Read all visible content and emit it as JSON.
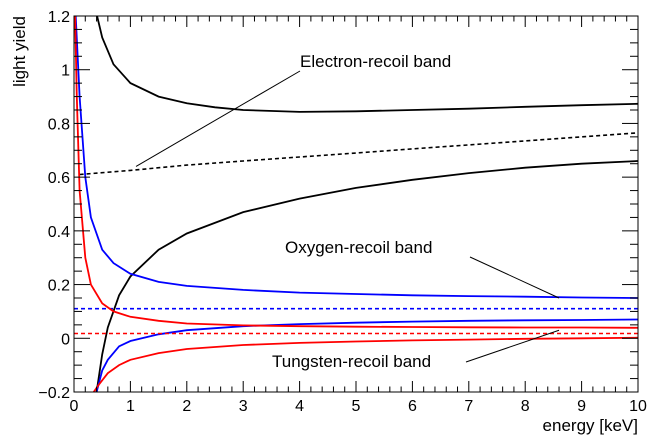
{
  "chart_data": {
    "type": "line",
    "xlabel": "energy [keV]",
    "ylabel": "light yield",
    "xlim": [
      0,
      10
    ],
    "ylim": [
      -0.2,
      1.2
    ],
    "xticks": [
      "0",
      "1",
      "2",
      "3",
      "4",
      "5",
      "6",
      "7",
      "8",
      "9",
      "10"
    ],
    "yticks": [
      "−0.2",
      "0",
      "0.2",
      "0.4",
      "0.6",
      "0.8",
      "1",
      "1.2"
    ],
    "grid": false,
    "colors": {
      "electron": "#000000",
      "oxygen": "#0000ff",
      "tungsten": "#ff0000"
    },
    "bands": [
      {
        "label": "Electron-recoil band",
        "color": "#000000",
        "upper": [
          [
            0.41,
            1.2
          ],
          [
            0.5,
            1.12
          ],
          [
            0.7,
            1.02
          ],
          [
            1.0,
            0.95
          ],
          [
            1.5,
            0.9
          ],
          [
            2.0,
            0.875
          ],
          [
            2.5,
            0.86
          ],
          [
            3.0,
            0.85
          ],
          [
            4.0,
            0.843
          ],
          [
            5.0,
            0.845
          ],
          [
            6.0,
            0.85
          ],
          [
            7.0,
            0.855
          ],
          [
            8.0,
            0.862
          ],
          [
            9.0,
            0.868
          ],
          [
            10.0,
            0.873
          ]
        ],
        "mean": [
          [
            0.1,
            0.61
          ],
          [
            1.0,
            0.625
          ],
          [
            2.0,
            0.645
          ],
          [
            3.0,
            0.66
          ],
          [
            4.0,
            0.675
          ],
          [
            5.0,
            0.69
          ],
          [
            6.0,
            0.705
          ],
          [
            7.0,
            0.72
          ],
          [
            8.0,
            0.735
          ],
          [
            9.0,
            0.75
          ],
          [
            10.0,
            0.765
          ]
        ],
        "lower": [
          [
            0.4,
            -0.2
          ],
          [
            0.5,
            -0.06
          ],
          [
            0.6,
            0.04
          ],
          [
            0.8,
            0.16
          ],
          [
            1.0,
            0.23
          ],
          [
            1.5,
            0.33
          ],
          [
            2.0,
            0.39
          ],
          [
            3.0,
            0.47
          ],
          [
            4.0,
            0.52
          ],
          [
            5.0,
            0.56
          ],
          [
            6.0,
            0.59
          ],
          [
            7.0,
            0.615
          ],
          [
            8.0,
            0.635
          ],
          [
            9.0,
            0.65
          ],
          [
            10.0,
            0.66
          ]
        ]
      },
      {
        "label": "Oxygen-recoil band",
        "color": "#0000ff",
        "upper": [
          [
            0.03,
            1.2
          ],
          [
            0.1,
            0.9
          ],
          [
            0.2,
            0.6
          ],
          [
            0.3,
            0.45
          ],
          [
            0.5,
            0.33
          ],
          [
            0.7,
            0.28
          ],
          [
            1.0,
            0.24
          ],
          [
            1.5,
            0.21
          ],
          [
            2.0,
            0.195
          ],
          [
            3.0,
            0.18
          ],
          [
            4.0,
            0.17
          ],
          [
            5.0,
            0.165
          ],
          [
            6.0,
            0.16
          ],
          [
            7.0,
            0.157
          ],
          [
            8.0,
            0.155
          ],
          [
            9.0,
            0.152
          ],
          [
            10.0,
            0.15
          ]
        ],
        "mean": [
          [
            0.0,
            0.11
          ],
          [
            10.0,
            0.11
          ]
        ],
        "lower": [
          [
            0.4,
            -0.2
          ],
          [
            0.5,
            -0.12
          ],
          [
            0.6,
            -0.08
          ],
          [
            0.8,
            -0.03
          ],
          [
            1.0,
            -0.01
          ],
          [
            1.5,
            0.015
          ],
          [
            2.0,
            0.03
          ],
          [
            3.0,
            0.045
          ],
          [
            4.0,
            0.053
          ],
          [
            5.0,
            0.058
          ],
          [
            6.0,
            0.062
          ],
          [
            7.0,
            0.065
          ],
          [
            8.0,
            0.067
          ],
          [
            9.0,
            0.068
          ],
          [
            10.0,
            0.07
          ]
        ]
      },
      {
        "label": "Tungsten-recoil band",
        "color": "#ff0000",
        "upper": [
          [
            0.02,
            1.2
          ],
          [
            0.05,
            0.9
          ],
          [
            0.1,
            0.55
          ],
          [
            0.2,
            0.3
          ],
          [
            0.3,
            0.2
          ],
          [
            0.5,
            0.13
          ],
          [
            0.7,
            0.1
          ],
          [
            1.0,
            0.08
          ],
          [
            1.5,
            0.065
          ],
          [
            2.0,
            0.055
          ],
          [
            3.0,
            0.048
          ],
          [
            4.0,
            0.045
          ],
          [
            5.0,
            0.043
          ],
          [
            6.0,
            0.042
          ],
          [
            7.0,
            0.041
          ],
          [
            8.0,
            0.04
          ],
          [
            9.0,
            0.04
          ],
          [
            10.0,
            0.039
          ]
        ],
        "mean": [
          [
            0.0,
            0.018
          ],
          [
            10.0,
            0.018
          ]
        ],
        "lower": [
          [
            0.35,
            -0.2
          ],
          [
            0.45,
            -0.17
          ],
          [
            0.6,
            -0.13
          ],
          [
            0.8,
            -0.1
          ],
          [
            1.0,
            -0.08
          ],
          [
            1.5,
            -0.055
          ],
          [
            2.0,
            -0.04
          ],
          [
            3.0,
            -0.025
          ],
          [
            4.0,
            -0.017
          ],
          [
            5.0,
            -0.012
          ],
          [
            6.0,
            -0.008
          ],
          [
            7.0,
            -0.005
          ],
          [
            8.0,
            -0.002
          ],
          [
            9.0,
            0.0
          ],
          [
            10.0,
            0.002
          ]
        ]
      }
    ],
    "annotations": [
      {
        "text": "Electron-recoil band",
        "point_at": [
          1.1,
          0.64
        ]
      },
      {
        "text": "Oxygen-recoil band",
        "point_at": [
          8.6,
          0.15
        ]
      },
      {
        "text": "Tungsten-recoil band",
        "point_at": [
          8.6,
          0.03
        ]
      }
    ]
  }
}
